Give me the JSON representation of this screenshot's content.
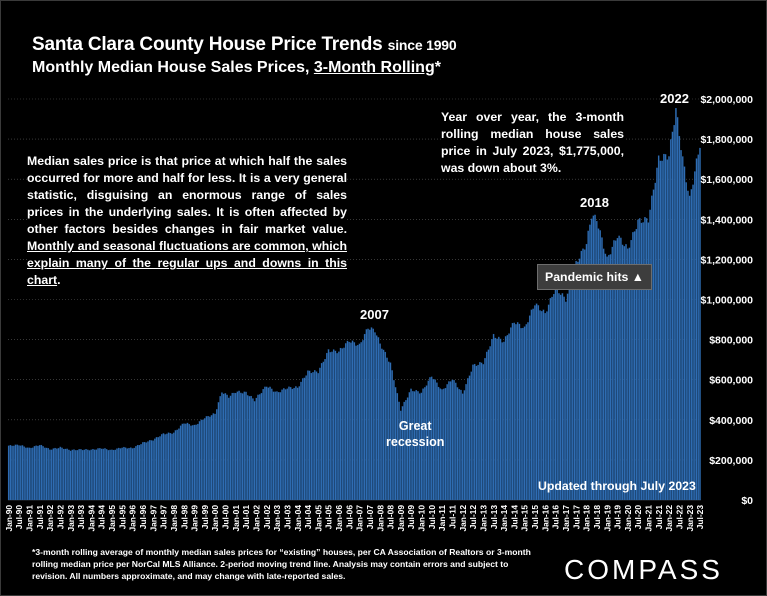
{
  "header": {
    "title_main": "Santa Clara County House Price Trends",
    "title_small": "since 1990",
    "subtitle_prefix": "Monthly Median House Sales Prices, ",
    "subtitle_underlined": "3-Month Rolling",
    "subtitle_suffix": "*"
  },
  "annotations": {
    "note_lead": "Median sales price is that price at which half the sales occurred for more and half for less. It is a very general statistic, disguising an enormous range of sales prices in the underlying sales. It is often affected by other factors besides changes in fair market value. ",
    "note_underlined": "Monthly and seasonal fluctuations are common, which explain many of the regular ups and downs in this chart",
    "note_end": ".",
    "yoy": "Year over year, the 3-month rolling median house sales price in July 2023, $1,775,000, was down about 3%.",
    "peak_2007": "2007",
    "peak_2018": "2018",
    "peak_2022": "2022",
    "great_recession_1": "Great",
    "great_recession_2": "recession",
    "pandemic": "Pandemic hits ▲",
    "updated": "Updated through July 2023"
  },
  "footer": {
    "footnote": "*3-month rolling average of monthly median sales prices for “existing” houses, per CA Association of Realtors or 3-month rolling median price per NorCal MLS Alliance. 2-period moving trend line. Analysis may contain errors and subject to revision. All numbers approximate, and may change with late-reported sales.",
    "logo": "COMPASS"
  },
  "colors": {
    "bar": "#2f6db3",
    "bar_edge": "#1f4f86",
    "grid": "#5a5a5a",
    "background": "#000000",
    "text": "#ffffff"
  },
  "chart_data": {
    "type": "bar",
    "start": "1990-01",
    "end": "2023-07",
    "frequency": "monthly",
    "ylim": [
      0,
      2000000
    ],
    "yticks": [
      0,
      200000,
      400000,
      600000,
      800000,
      1000000,
      1200000,
      1400000,
      1600000,
      1800000,
      2000000
    ],
    "ytick_labels": [
      "$0",
      "$200,000",
      "$400,000",
      "$600,000",
      "$800,000",
      "$1,000,000",
      "$1,200,000",
      "$1,400,000",
      "$1,600,000",
      "$1,800,000",
      "$2,000,000"
    ],
    "xtick_labels": [
      "Jan-90",
      "Jul-90",
      "Jan-91",
      "Jul-91",
      "Jan-92",
      "Jul-92",
      "Jan-93",
      "Jul-93",
      "Jan-94",
      "Jul-94",
      "Jan-95",
      "Jul-95",
      "Jan-96",
      "Jul-96",
      "Jan-97",
      "Jul-97",
      "Jan-98",
      "Jul-98",
      "Jan-99",
      "Jul-99",
      "Jan-00",
      "Jul-00",
      "Jan-01",
      "Jul-01",
      "Jan-02",
      "Jul-02",
      "Jan-03",
      "Jul-03",
      "Jan-04",
      "Jul-04",
      "Jan-05",
      "Jul-05",
      "Jan-06",
      "Jul-06",
      "Jan-07",
      "Jul-07",
      "Jan-08",
      "Jul-08",
      "Jan-09",
      "Jul-09",
      "Jan-10",
      "Jul-10",
      "Jan-11",
      "Jul-11",
      "Jan-12",
      "Jul-12",
      "Jan-13",
      "Jul-13",
      "Jan-14",
      "Jul-14",
      "Jan-15",
      "Jul-15",
      "Jan-16",
      "Jul-16",
      "Jan-17",
      "Jul-17",
      "Jan-18",
      "Jul-18",
      "Jan-19",
      "Jul-19",
      "Jan-20",
      "Jul-20",
      "Jan-21",
      "Jul-21",
      "Jan-22",
      "Jul-22",
      "Jan-23",
      "Jul-23"
    ],
    "anchors": [
      [
        "1990-01",
        270000
      ],
      [
        "1990-07",
        275000
      ],
      [
        "1991-01",
        258000
      ],
      [
        "1991-07",
        275000
      ],
      [
        "1992-01",
        252000
      ],
      [
        "1992-07",
        262000
      ],
      [
        "1993-01",
        248000
      ],
      [
        "1993-07",
        252000
      ],
      [
        "1994-01",
        250000
      ],
      [
        "1994-07",
        258000
      ],
      [
        "1995-01",
        248000
      ],
      [
        "1995-07",
        262000
      ],
      [
        "1996-01",
        258000
      ],
      [
        "1996-07",
        285000
      ],
      [
        "1997-01",
        300000
      ],
      [
        "1997-07",
        330000
      ],
      [
        "1998-01",
        335000
      ],
      [
        "1998-07",
        385000
      ],
      [
        "1999-01",
        370000
      ],
      [
        "1999-07",
        410000
      ],
      [
        "2000-01",
        430000
      ],
      [
        "2000-05",
        540000
      ],
      [
        "2000-09",
        515000
      ],
      [
        "2001-01",
        540000
      ],
      [
        "2001-07",
        535000
      ],
      [
        "2001-12",
        498000
      ],
      [
        "2002-07",
        570000
      ],
      [
        "2003-01",
        535000
      ],
      [
        "2003-07",
        560000
      ],
      [
        "2004-01",
        560000
      ],
      [
        "2004-07",
        640000
      ],
      [
        "2005-01",
        640000
      ],
      [
        "2005-07",
        745000
      ],
      [
        "2006-01",
        740000
      ],
      [
        "2006-07",
        795000
      ],
      [
        "2007-01",
        770000
      ],
      [
        "2007-06",
        860000
      ],
      [
        "2007-10",
        845000
      ],
      [
        "2008-01",
        780000
      ],
      [
        "2008-07",
        680000
      ],
      [
        "2009-01",
        450000
      ],
      [
        "2009-07",
        550000
      ],
      [
        "2010-01",
        535000
      ],
      [
        "2010-07",
        620000
      ],
      [
        "2011-01",
        545000
      ],
      [
        "2011-07",
        605000
      ],
      [
        "2012-01",
        530000
      ],
      [
        "2012-07",
        670000
      ],
      [
        "2013-01",
        685000
      ],
      [
        "2013-07",
        820000
      ],
      [
        "2014-01",
        790000
      ],
      [
        "2014-07",
        890000
      ],
      [
        "2015-01",
        855000
      ],
      [
        "2015-07",
        980000
      ],
      [
        "2016-01",
        930000
      ],
      [
        "2016-07",
        1060000
      ],
      [
        "2017-01",
        1000000
      ],
      [
        "2017-07",
        1180000
      ],
      [
        "2018-01",
        1280000
      ],
      [
        "2018-04",
        1420000
      ],
      [
        "2018-07",
        1400000
      ],
      [
        "2019-01",
        1200000
      ],
      [
        "2019-07",
        1320000
      ],
      [
        "2020-01",
        1250000
      ],
      [
        "2020-07",
        1390000
      ],
      [
        "2021-01",
        1400000
      ],
      [
        "2021-07",
        1700000
      ],
      [
        "2022-01",
        1720000
      ],
      [
        "2022-05",
        1950000
      ],
      [
        "2022-09",
        1700000
      ],
      [
        "2023-01",
        1500000
      ],
      [
        "2023-07",
        1775000
      ]
    ]
  }
}
